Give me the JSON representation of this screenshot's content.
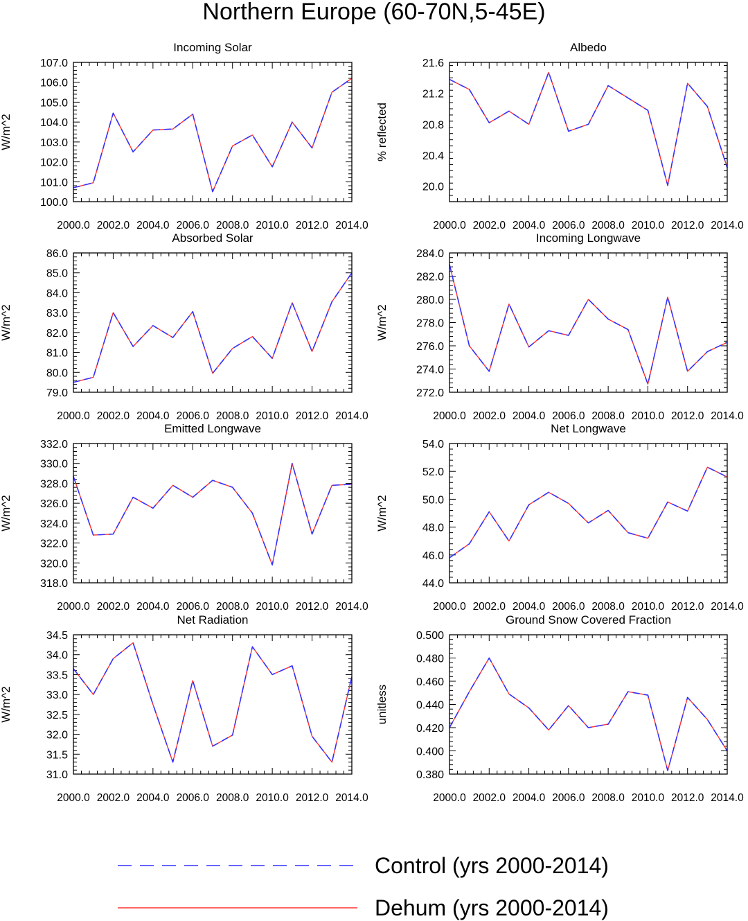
{
  "figure_title": "Northern Europe (60-70N,5-45E)",
  "legend": [
    {
      "label": "Control (yrs 2000-2014)",
      "color": "#3333ff",
      "dash": "dashed"
    },
    {
      "label": "Dehum (yrs 2000-2014)",
      "color": "#ff3333",
      "dash": "solid"
    }
  ],
  "chart_data": [
    {
      "type": "line",
      "title": "Incoming Solar",
      "ylabel": "W/m^2",
      "x": [
        2000,
        2001,
        2002,
        2003,
        2004,
        2005,
        2006,
        2007,
        2008,
        2009,
        2010,
        2011,
        2012,
        2013,
        2014
      ],
      "xlim": [
        2000,
        2014
      ],
      "xticks": [
        "2000.0",
        "2002.0",
        "2004.0",
        "2006.0",
        "2008.0",
        "2010.0",
        "2012.0",
        "2014.0"
      ],
      "ylim": [
        100.0,
        107.0
      ],
      "yticks": [
        "100.0",
        "101.0",
        "102.0",
        "103.0",
        "104.0",
        "105.0",
        "106.0",
        "107.0"
      ],
      "series": [
        {
          "name": "Control (yrs 2000-2014)",
          "values": [
            100.7,
            100.95,
            104.45,
            102.5,
            103.6,
            103.65,
            104.4,
            100.5,
            102.8,
            103.35,
            101.75,
            104.0,
            102.7,
            105.5,
            106.2
          ]
        },
        {
          "name": "Dehum (yrs 2000-2014)",
          "values": [
            100.7,
            100.95,
            104.45,
            102.5,
            103.6,
            103.65,
            104.4,
            100.5,
            102.8,
            103.35,
            101.75,
            104.0,
            102.7,
            105.5,
            106.2
          ]
        }
      ]
    },
    {
      "type": "line",
      "title": "Albedo",
      "ylabel": "% reflected",
      "x": [
        2000,
        2001,
        2002,
        2003,
        2004,
        2005,
        2006,
        2007,
        2008,
        2009,
        2010,
        2011,
        2012,
        2013,
        2014
      ],
      "xlim": [
        2000,
        2014
      ],
      "xticks": [
        "2000.0",
        "2002.0",
        "2004.0",
        "2006.0",
        "2008.0",
        "2010.0",
        "2012.0",
        "2014.0"
      ],
      "ylim": [
        19.8,
        21.6
      ],
      "yticks": [
        "20.0",
        "20.4",
        "20.8",
        "21.2",
        "21.6"
      ],
      "ytick_values": [
        20.0,
        20.4,
        20.8,
        21.2,
        21.6
      ],
      "series": [
        {
          "name": "Control (yrs 2000-2014)",
          "values": [
            21.38,
            21.25,
            20.82,
            20.97,
            20.8,
            21.47,
            20.71,
            20.8,
            21.3,
            21.14,
            20.98,
            20.01,
            21.33,
            21.03,
            20.24
          ]
        },
        {
          "name": "Dehum (yrs 2000-2014)",
          "values": [
            21.38,
            21.25,
            20.82,
            20.97,
            20.8,
            21.47,
            20.71,
            20.8,
            21.3,
            21.14,
            20.98,
            20.01,
            21.33,
            21.03,
            20.24
          ]
        }
      ]
    },
    {
      "type": "line",
      "title": "Absorbed Solar",
      "ylabel": "W/m^2",
      "x": [
        2000,
        2001,
        2002,
        2003,
        2004,
        2005,
        2006,
        2007,
        2008,
        2009,
        2010,
        2011,
        2012,
        2013,
        2014
      ],
      "xlim": [
        2000,
        2014
      ],
      "xticks": [
        "2000.0",
        "2002.0",
        "2004.0",
        "2006.0",
        "2008.0",
        "2010.0",
        "2012.0",
        "2014.0"
      ],
      "ylim": [
        79.0,
        86.0
      ],
      "yticks": [
        "79.0",
        "80.0",
        "81.0",
        "82.0",
        "83.0",
        "84.0",
        "85.0",
        "86.0"
      ],
      "series": [
        {
          "name": "Control (yrs 2000-2014)",
          "values": [
            79.5,
            79.75,
            83.0,
            81.3,
            82.35,
            81.75,
            83.05,
            79.95,
            81.2,
            81.8,
            80.7,
            83.5,
            81.05,
            83.55,
            85.0
          ]
        },
        {
          "name": "Dehum (yrs 2000-2014)",
          "values": [
            79.5,
            79.75,
            83.0,
            81.3,
            82.35,
            81.75,
            83.05,
            79.95,
            81.2,
            81.8,
            80.7,
            83.5,
            81.05,
            83.55,
            85.0
          ]
        }
      ]
    },
    {
      "type": "line",
      "title": "Incoming Longwave",
      "ylabel": "W/m^2",
      "x": [
        2000,
        2001,
        2002,
        2003,
        2004,
        2005,
        2006,
        2007,
        2008,
        2009,
        2010,
        2011,
        2012,
        2013,
        2014
      ],
      "xlim": [
        2000,
        2014
      ],
      "xticks": [
        "2000.0",
        "2002.0",
        "2004.0",
        "2006.0",
        "2008.0",
        "2010.0",
        "2012.0",
        "2014.0"
      ],
      "ylim": [
        272.0,
        284.0
      ],
      "yticks": [
        "272.0",
        "274.0",
        "276.0",
        "278.0",
        "280.0",
        "282.0",
        "284.0"
      ],
      "series": [
        {
          "name": "Control (yrs 2000-2014)",
          "values": [
            283.0,
            276.0,
            273.8,
            279.6,
            275.9,
            277.3,
            276.9,
            280.0,
            278.3,
            277.4,
            272.7,
            280.2,
            273.8,
            275.5,
            276.3
          ]
        },
        {
          "name": "Dehum (yrs 2000-2014)",
          "values": [
            283.0,
            276.0,
            273.8,
            279.6,
            275.9,
            277.3,
            276.9,
            280.0,
            278.3,
            277.4,
            272.7,
            280.2,
            273.8,
            275.5,
            276.3
          ]
        }
      ]
    },
    {
      "type": "line",
      "title": "Emitted Longwave",
      "ylabel": "W/m^2",
      "x": [
        2000,
        2001,
        2002,
        2003,
        2004,
        2005,
        2006,
        2007,
        2008,
        2009,
        2010,
        2011,
        2012,
        2013,
        2014
      ],
      "xlim": [
        2000,
        2014
      ],
      "xticks": [
        "2000.0",
        "2002.0",
        "2004.0",
        "2006.0",
        "2008.0",
        "2010.0",
        "2012.0",
        "2014.0"
      ],
      "ylim": [
        318.0,
        332.0
      ],
      "yticks": [
        "318.0",
        "320.0",
        "322.0",
        "324.0",
        "326.0",
        "328.0",
        "330.0",
        "332.0"
      ],
      "series": [
        {
          "name": "Control (yrs 2000-2014)",
          "values": [
            328.7,
            322.8,
            322.9,
            326.6,
            325.5,
            327.8,
            326.6,
            328.3,
            327.6,
            325.0,
            319.8,
            330.0,
            322.9,
            327.8,
            327.9
          ]
        },
        {
          "name": "Dehum (yrs 2000-2014)",
          "values": [
            328.7,
            322.8,
            322.9,
            326.6,
            325.5,
            327.8,
            326.6,
            328.3,
            327.6,
            325.0,
            319.8,
            330.0,
            322.9,
            327.8,
            327.9
          ]
        }
      ]
    },
    {
      "type": "line",
      "title": "Net Longwave",
      "ylabel": "W/m^2",
      "x": [
        2000,
        2001,
        2002,
        2003,
        2004,
        2005,
        2006,
        2007,
        2008,
        2009,
        2010,
        2011,
        2012,
        2013,
        2014
      ],
      "xlim": [
        2000,
        2014
      ],
      "xticks": [
        "2000.0",
        "2002.0",
        "2004.0",
        "2006.0",
        "2008.0",
        "2010.0",
        "2012.0",
        "2014.0"
      ],
      "ylim": [
        44.0,
        54.0
      ],
      "yticks": [
        "44.0",
        "46.0",
        "48.0",
        "50.0",
        "52.0",
        "54.0"
      ],
      "series": [
        {
          "name": "Control (yrs 2000-2014)",
          "values": [
            45.8,
            46.8,
            49.1,
            47.0,
            49.6,
            50.5,
            49.7,
            48.3,
            49.2,
            47.6,
            47.2,
            49.8,
            49.15,
            52.3,
            51.6
          ]
        },
        {
          "name": "Dehum (yrs 2000-2014)",
          "values": [
            45.8,
            46.8,
            49.1,
            47.0,
            49.6,
            50.5,
            49.7,
            48.3,
            49.2,
            47.6,
            47.2,
            49.8,
            49.15,
            52.3,
            51.6
          ]
        }
      ]
    },
    {
      "type": "line",
      "title": "Net Radiation",
      "ylabel": "W/m^2",
      "x": [
        2000,
        2001,
        2002,
        2003,
        2004,
        2005,
        2006,
        2007,
        2008,
        2009,
        2010,
        2011,
        2012,
        2013,
        2014
      ],
      "xlim": [
        2000,
        2014
      ],
      "xticks": [
        "2000.0",
        "2002.0",
        "2004.0",
        "2006.0",
        "2008.0",
        "2010.0",
        "2012.0",
        "2014.0"
      ],
      "ylim": [
        31.0,
        34.5
      ],
      "yticks": [
        "31.0",
        "31.5",
        "32.0",
        "32.5",
        "33.0",
        "33.5",
        "34.0",
        "34.5"
      ],
      "series": [
        {
          "name": "Control (yrs 2000-2014)",
          "values": [
            33.65,
            33.0,
            33.9,
            34.3,
            32.75,
            31.3,
            33.35,
            31.7,
            31.98,
            34.2,
            33.5,
            33.72,
            31.95,
            31.3,
            33.45
          ]
        },
        {
          "name": "Dehum (yrs 2000-2014)",
          "values": [
            33.65,
            33.0,
            33.9,
            34.3,
            32.75,
            31.3,
            33.35,
            31.7,
            31.98,
            34.2,
            33.5,
            33.72,
            31.95,
            31.3,
            33.45
          ]
        }
      ]
    },
    {
      "type": "line",
      "title": "Ground Snow Covered Fraction",
      "ylabel": "unitless",
      "x": [
        2000,
        2001,
        2002,
        2003,
        2004,
        2005,
        2006,
        2007,
        2008,
        2009,
        2010,
        2011,
        2012,
        2013,
        2014
      ],
      "xlim": [
        2000,
        2014
      ],
      "xticks": [
        "2000.0",
        "2002.0",
        "2004.0",
        "2006.0",
        "2008.0",
        "2010.0",
        "2012.0",
        "2014.0"
      ],
      "ylim": [
        0.38,
        0.5
      ],
      "yticks": [
        "0.380",
        "0.400",
        "0.420",
        "0.440",
        "0.460",
        "0.480",
        "0.500"
      ],
      "series": [
        {
          "name": "Control (yrs 2000-2014)",
          "values": [
            0.42,
            0.451,
            0.48,
            0.449,
            0.437,
            0.418,
            0.439,
            0.42,
            0.423,
            0.451,
            0.448,
            0.383,
            0.446,
            0.427,
            0.4
          ]
        },
        {
          "name": "Dehum (yrs 2000-2014)",
          "values": [
            0.42,
            0.451,
            0.48,
            0.449,
            0.437,
            0.418,
            0.439,
            0.42,
            0.423,
            0.451,
            0.448,
            0.383,
            0.446,
            0.427,
            0.4
          ]
        }
      ]
    }
  ]
}
